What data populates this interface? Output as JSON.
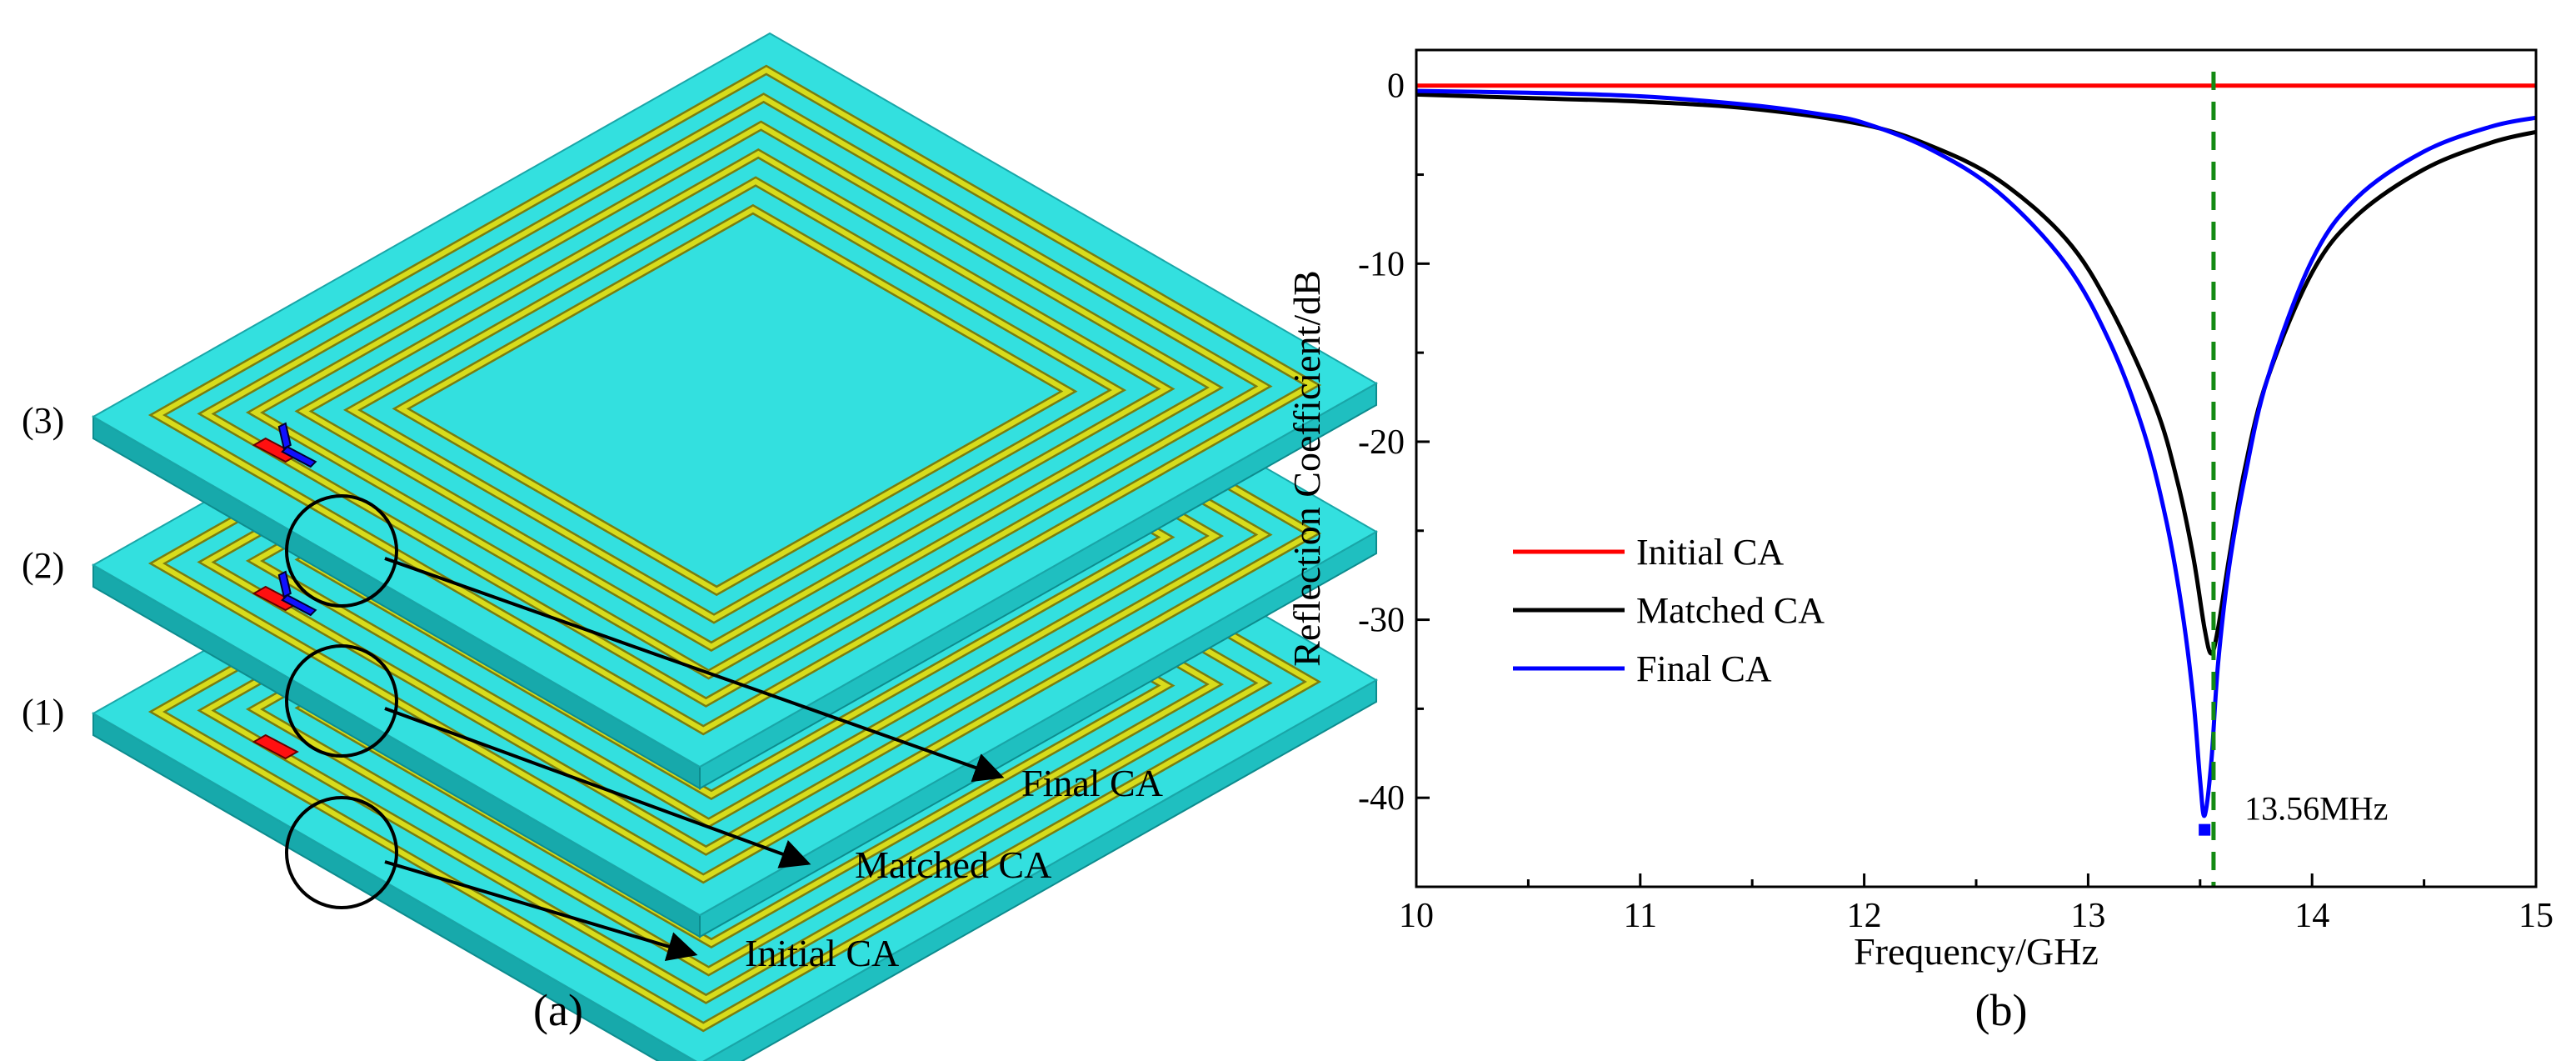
{
  "panel_a": {
    "label": "(a)",
    "layer_labels": [
      "(3)",
      "(2)",
      "(1)"
    ],
    "callouts": [
      "Final CA",
      "Matched CA",
      "Initial CA"
    ],
    "colors": {
      "substrate_top": "#33e0df",
      "substrate_side": "#1fbfc0",
      "substrate_front": "#17a9ab",
      "trace": "#d8dc1c",
      "trace_edge": "#7a7d10",
      "port_red": "#ff1010",
      "port_blue": "#1010ff"
    }
  },
  "panel_b": {
    "label": "(b)"
  },
  "chart_data": {
    "type": "line",
    "title": "",
    "xlabel": "Frequency/GHz",
    "ylabel": "Reflection Coefficient/dB",
    "xlim": [
      10,
      15
    ],
    "ylim": [
      -45,
      2
    ],
    "xticks": [
      10,
      11,
      12,
      13,
      14,
      15
    ],
    "yticks": [
      0,
      -10,
      -20,
      -30,
      -40
    ],
    "grid": false,
    "legend_position": "center-left",
    "series": [
      {
        "name": "Initial CA",
        "color": "#ff0000",
        "x": [
          10,
          10.5,
          11,
          11.5,
          12,
          12.5,
          13,
          13.5,
          14,
          14.5,
          15
        ],
        "y": [
          0,
          0,
          0,
          0,
          0,
          0,
          0,
          0,
          0,
          0,
          0
        ]
      },
      {
        "name": "Matched CA",
        "color": "#000000",
        "x": [
          10,
          10.5,
          11,
          11.5,
          12,
          12.3,
          12.6,
          12.9,
          13.1,
          13.3,
          13.4,
          13.47,
          13.52,
          13.55,
          13.58,
          13.63,
          13.7,
          13.8,
          14,
          14.2,
          14.5,
          14.8,
          15
        ],
        "y": [
          -0.5,
          -0.7,
          -0.9,
          -1.3,
          -2.2,
          -3.4,
          -5.3,
          -8.6,
          -12.5,
          -18.0,
          -22.3,
          -26.5,
          -30.5,
          -31.9,
          -30.5,
          -26.5,
          -21.5,
          -16.5,
          -10.5,
          -7.3,
          -4.7,
          -3.2,
          -2.6
        ]
      },
      {
        "name": "Final CA",
        "color": "#0000ff",
        "x": [
          10,
          10.5,
          11,
          11.5,
          11.8,
          12,
          12.3,
          12.6,
          12.9,
          13.1,
          13.25,
          13.35,
          13.42,
          13.47,
          13.5,
          13.52,
          13.55,
          13.58,
          13.63,
          13.7,
          13.8,
          14,
          14.2,
          14.5,
          14.8,
          15
        ],
        "y": [
          -0.3,
          -0.4,
          -0.6,
          -1.1,
          -1.6,
          -2.1,
          -3.6,
          -6.0,
          -10.0,
          -14.5,
          -19.5,
          -24.5,
          -29.5,
          -34.5,
          -39.0,
          -41.0,
          -38.0,
          -32.5,
          -27.0,
          -22.0,
          -16.5,
          -9.8,
          -6.3,
          -3.7,
          -2.3,
          -1.8
        ]
      }
    ],
    "reference_line": {
      "x": 13.56,
      "color": "#138a13",
      "style": "dashed"
    },
    "annotation": {
      "text": "13.56MHz",
      "x": 13.52,
      "y": -41.8,
      "marker_color": "#0000ff"
    }
  }
}
